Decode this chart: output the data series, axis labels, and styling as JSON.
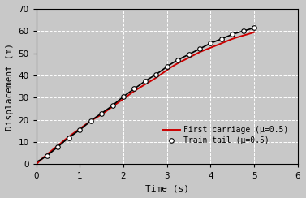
{
  "xlim": [
    0,
    6
  ],
  "ylim": [
    0,
    70
  ],
  "xticks": [
    0,
    1,
    2,
    3,
    4,
    5,
    6
  ],
  "yticks": [
    0,
    10,
    20,
    30,
    40,
    50,
    60,
    70
  ],
  "xlabel": "Time (s)",
  "ylabel": "Displacement (m)",
  "bg_color": "#c8c8c8",
  "grid_color": "white",
  "line1_color": "#cc0000",
  "line1_label": "First carriage (μ=0.5)",
  "line2_color": "#000000",
  "line2_label": "Train tail (μ=0.5)",
  "marker_facecolor": "white",
  "marker_edgecolor": "black",
  "marker_size": 4,
  "train_tail_x": [
    0.25,
    0.5,
    0.75,
    1.0,
    1.25,
    1.5,
    1.75,
    2.0,
    2.25,
    2.5,
    2.75,
    3.0,
    3.25,
    3.5,
    3.75,
    4.0,
    4.25,
    4.5,
    4.75,
    5.0
  ],
  "train_tail_y": [
    4.0,
    8.0,
    12.0,
    15.5,
    19.5,
    23.0,
    26.5,
    30.5,
    34.0,
    37.5,
    40.5,
    44.0,
    47.0,
    49.5,
    52.0,
    54.5,
    56.5,
    58.5,
    60.0,
    61.5
  ],
  "first_carriage_x": [
    0.0,
    0.25,
    0.5,
    0.75,
    1.0,
    1.25,
    1.5,
    1.75,
    2.0,
    2.25,
    2.5,
    2.75,
    3.0,
    3.25,
    3.5,
    3.75,
    4.0,
    4.25,
    4.5,
    4.75,
    5.0
  ],
  "first_carriage_y": [
    0.0,
    4.5,
    8.5,
    12.5,
    16.0,
    19.5,
    22.5,
    26.0,
    29.5,
    33.0,
    36.0,
    39.0,
    42.5,
    45.5,
    48.0,
    50.5,
    52.5,
    54.5,
    56.5,
    58.0,
    59.5
  ]
}
